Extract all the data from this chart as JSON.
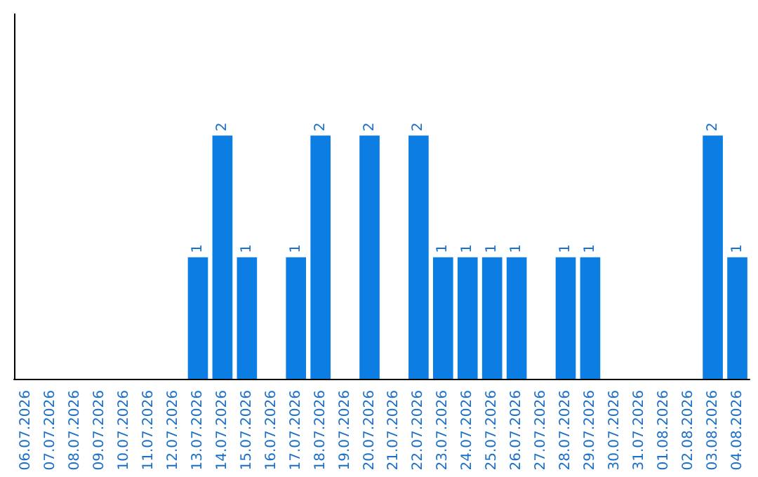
{
  "chart_data": {
    "type": "bar",
    "categories": [
      "06.07.2026",
      "07.07.2026",
      "08.07.2026",
      "09.07.2026",
      "10.07.2026",
      "11.07.2026",
      "12.07.2026",
      "13.07.2026",
      "14.07.2026",
      "15.07.2026",
      "16.07.2026",
      "17.07.2026",
      "18.07.2026",
      "19.07.2026",
      "20.07.2026",
      "21.07.2026",
      "22.07.2026",
      "23.07.2026",
      "24.07.2026",
      "25.07.2026",
      "26.07.2026",
      "27.07.2026",
      "28.07.2026",
      "29.07.2026",
      "30.07.2026",
      "31.07.2026",
      "01.08.2026",
      "02.08.2026",
      "03.08.2026",
      "04.08.2026"
    ],
    "values": [
      0,
      0,
      0,
      0,
      0,
      0,
      0,
      1,
      2,
      1,
      0,
      1,
      2,
      0,
      2,
      0,
      2,
      1,
      1,
      1,
      1,
      0,
      1,
      1,
      0,
      0,
      0,
      0,
      2,
      1
    ],
    "value_labels": [
      null,
      null,
      null,
      null,
      null,
      null,
      null,
      "1",
      "2",
      "1",
      null,
      "1",
      "2",
      null,
      "2",
      null,
      "2",
      "1",
      "1",
      "1",
      "1",
      null,
      "1",
      "1",
      null,
      null,
      null,
      null,
      "2",
      "1"
    ],
    "color": "#0b7de3",
    "ylim": [
      0,
      3
    ],
    "tick_labels": "x"
  }
}
